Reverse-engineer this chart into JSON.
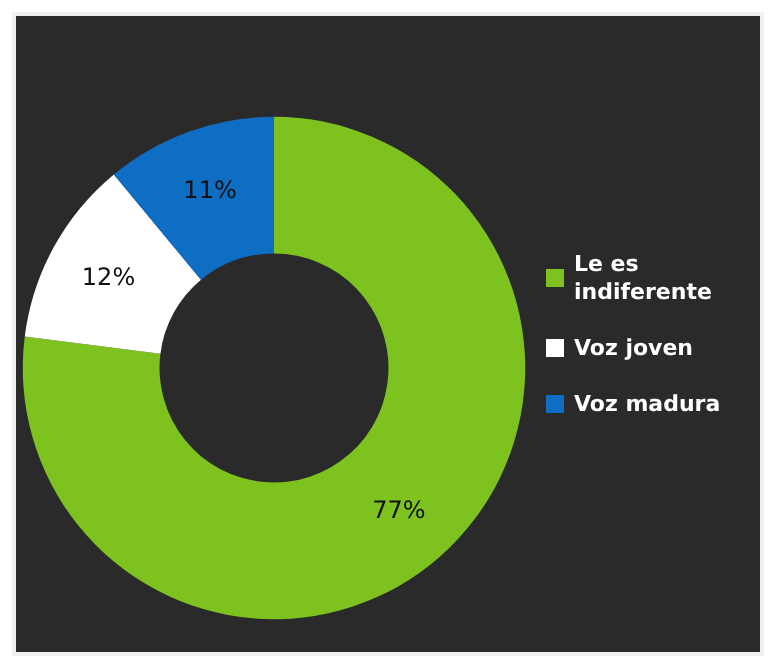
{
  "chart_data": {
    "type": "donut",
    "categories": [
      "Le es indiferente",
      "Voz joven",
      "Voz madura"
    ],
    "values": [
      77,
      12,
      11
    ],
    "colors": [
      "#7dc21e",
      "#ffffff",
      "#0e6ec4"
    ],
    "value_labels": [
      "77%",
      "12%",
      "11%"
    ],
    "legend": "right"
  }
}
